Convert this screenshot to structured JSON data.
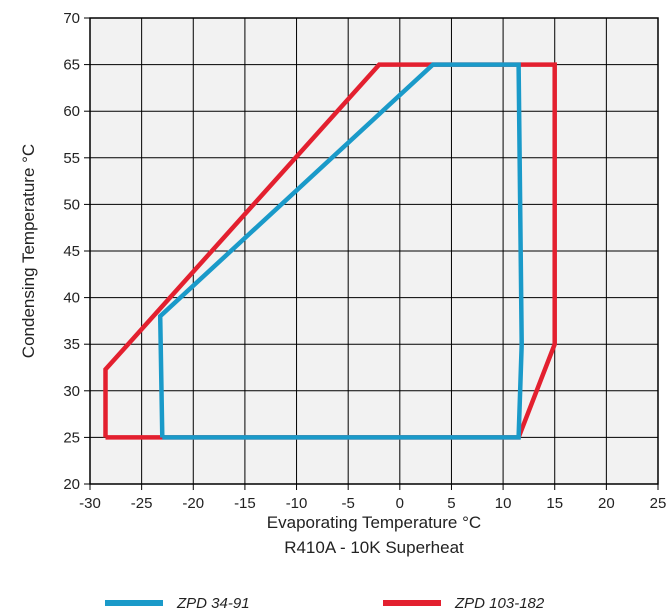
{
  "chart_data": {
    "type": "line",
    "xlabel": "Evaporating Temperature °C",
    "xlabel_sub": "R410A - 10K Superheat",
    "ylabel": "Condensing Temperature °C",
    "xlim": [
      -30,
      25
    ],
    "ylim": [
      20,
      70
    ],
    "x_ticks": [
      -30,
      -25,
      -20,
      -15,
      -10,
      -5,
      0,
      5,
      10,
      15,
      20,
      25
    ],
    "y_ticks": [
      20,
      25,
      30,
      35,
      40,
      45,
      50,
      55,
      60,
      65,
      70
    ],
    "grid": true,
    "legend_position": "bottom",
    "series": [
      {
        "name": "ZPD 34-91",
        "color": "#1a9ac9",
        "points": [
          [
            -23,
            25
          ],
          [
            11.5,
            25
          ],
          [
            11.8,
            35
          ],
          [
            11.5,
            65
          ],
          [
            3.2,
            65
          ],
          [
            -23.2,
            38
          ],
          [
            -23,
            25
          ]
        ]
      },
      {
        "name": "ZPD 103-182",
        "color": "#e3202f",
        "points": [
          [
            -28.5,
            25
          ],
          [
            11.5,
            25
          ],
          [
            15,
            35
          ],
          [
            15,
            65
          ],
          [
            -2,
            65
          ],
          [
            -28.5,
            32.3
          ],
          [
            -28.5,
            25
          ]
        ]
      }
    ]
  }
}
